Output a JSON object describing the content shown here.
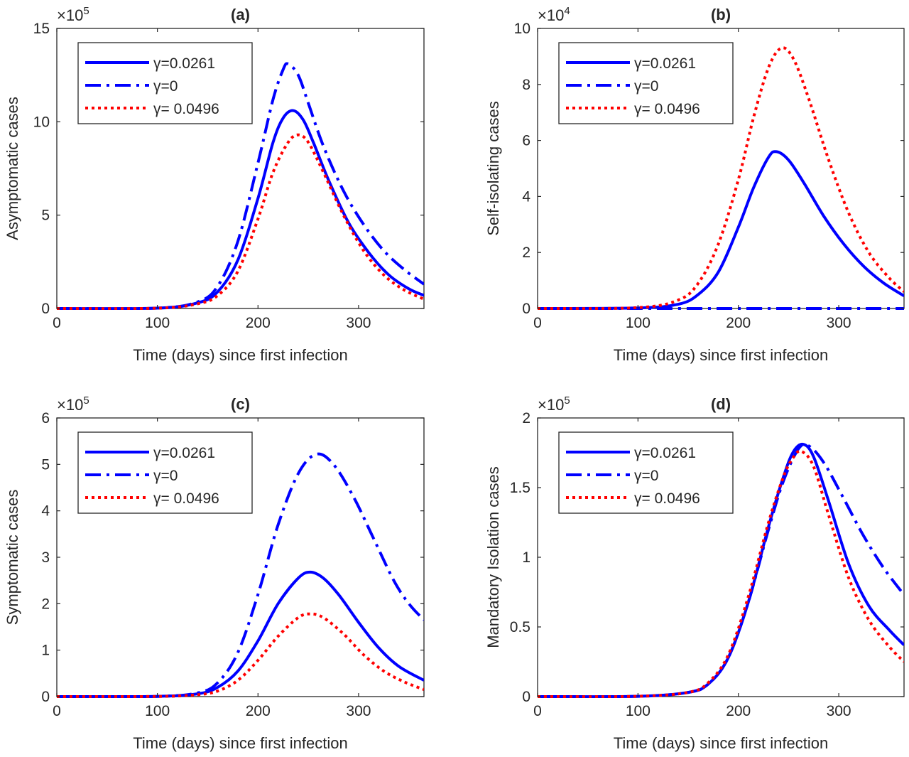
{
  "chart_data": [
    {
      "type": "line",
      "title": "(a)",
      "xlabel": "Time (days) since first infection",
      "ylabel": "Asymptomatic cases",
      "y_exponent_label": "×10",
      "y_exponent_power": "5",
      "xlim": [
        0,
        365
      ],
      "ylim": [
        0,
        15
      ],
      "xticks": [
        0,
        100,
        200,
        300
      ],
      "yticks": [
        0,
        5,
        10,
        15
      ],
      "grid": false,
      "legend_position": "top-left",
      "series": [
        {
          "name": "γ=0.0261",
          "color": "#0000ff",
          "style": "solid",
          "x": [
            0,
            100,
            140,
            160,
            180,
            200,
            215,
            225,
            235,
            245,
            255,
            270,
            290,
            310,
            330,
            350,
            365
          ],
          "y": [
            0,
            0.02,
            0.3,
            0.9,
            2.6,
            5.9,
            8.9,
            10.2,
            10.6,
            10.1,
            8.9,
            6.9,
            4.6,
            3.0,
            1.8,
            1.05,
            0.7
          ]
        },
        {
          "name": "γ=0",
          "color": "#0000ff",
          "style": "dashdot",
          "x": [
            0,
            100,
            140,
            160,
            180,
            200,
            215,
            225,
            230,
            240,
            250,
            265,
            285,
            305,
            325,
            345,
            365
          ],
          "y": [
            0,
            0.02,
            0.35,
            1.2,
            3.6,
            7.8,
            11.2,
            12.8,
            13.1,
            12.5,
            11.0,
            8.7,
            6.3,
            4.5,
            3.1,
            2.1,
            1.3
          ]
        },
        {
          "name": "γ= 0.0496",
          "color": "#ff0000",
          "style": "dotted",
          "x": [
            0,
            100,
            140,
            160,
            180,
            200,
            215,
            230,
            240,
            250,
            265,
            285,
            305,
            325,
            345,
            365
          ],
          "y": [
            0,
            0.015,
            0.25,
            0.7,
            2.0,
            4.8,
            7.3,
            8.9,
            9.3,
            8.9,
            7.3,
            5.0,
            3.1,
            1.8,
            1.0,
            0.5
          ]
        }
      ]
    },
    {
      "type": "line",
      "title": "(b)",
      "xlabel": "Time (days) since first infection",
      "ylabel": "Self-isolating cases",
      "y_exponent_label": "×10",
      "y_exponent_power": "4",
      "xlim": [
        0,
        365
      ],
      "ylim": [
        0,
        10
      ],
      "xticks": [
        0,
        100,
        200,
        300
      ],
      "yticks": [
        0,
        2,
        4,
        6,
        8,
        10
      ],
      "grid": false,
      "legend_position": "top-left",
      "series": [
        {
          "name": "γ=0.0261",
          "color": "#0000ff",
          "style": "solid",
          "x": [
            0,
            100,
            140,
            160,
            180,
            200,
            215,
            230,
            238,
            250,
            265,
            285,
            305,
            325,
            345,
            365
          ],
          "y": [
            0,
            0.02,
            0.15,
            0.5,
            1.3,
            2.9,
            4.3,
            5.4,
            5.6,
            5.3,
            4.5,
            3.3,
            2.3,
            1.5,
            0.9,
            0.45
          ]
        },
        {
          "name": "γ=0",
          "color": "#0000ff",
          "style": "dashdot",
          "x": [
            0,
            365
          ],
          "y": [
            0,
            0
          ]
        },
        {
          "name": "γ= 0.0496",
          "color": "#ff0000",
          "style": "dotted",
          "x": [
            0,
            100,
            140,
            160,
            180,
            200,
            215,
            230,
            243,
            255,
            270,
            290,
            310,
            330,
            350,
            365
          ],
          "y": [
            0,
            0.03,
            0.3,
            0.9,
            2.3,
            4.6,
            6.8,
            8.6,
            9.3,
            8.9,
            7.5,
            5.3,
            3.4,
            2.0,
            1.1,
            0.6
          ]
        }
      ]
    },
    {
      "type": "line",
      "title": "(c)",
      "xlabel": "Time (days) since first infection",
      "ylabel": "Symptomatic cases",
      "y_exponent_label": "×10",
      "y_exponent_power": "5",
      "xlim": [
        0,
        365
      ],
      "ylim": [
        0,
        6
      ],
      "xticks": [
        0,
        100,
        200,
        300
      ],
      "yticks": [
        0,
        1,
        2,
        3,
        4,
        5,
        6
      ],
      "grid": false,
      "legend_position": "top-left",
      "series": [
        {
          "name": "γ=0.0261",
          "color": "#0000ff",
          "style": "solid",
          "x": [
            0,
            100,
            140,
            160,
            180,
            200,
            220,
            240,
            252,
            265,
            280,
            300,
            320,
            340,
            365
          ],
          "y": [
            0,
            0.005,
            0.06,
            0.2,
            0.55,
            1.2,
            2.0,
            2.55,
            2.68,
            2.55,
            2.2,
            1.6,
            1.05,
            0.65,
            0.35
          ]
        },
        {
          "name": "γ=0",
          "color": "#0000ff",
          "style": "dashdot",
          "x": [
            0,
            100,
            140,
            160,
            180,
            200,
            220,
            240,
            258,
            275,
            295,
            315,
            335,
            350,
            365
          ],
          "y": [
            0,
            0.005,
            0.08,
            0.3,
            0.95,
            2.2,
            3.7,
            4.8,
            5.22,
            5.0,
            4.3,
            3.4,
            2.5,
            2.0,
            1.65
          ]
        },
        {
          "name": "γ= 0.0496",
          "color": "#ff0000",
          "style": "dotted",
          "x": [
            0,
            100,
            140,
            160,
            180,
            200,
            220,
            240,
            252,
            265,
            285,
            305,
            325,
            345,
            365
          ],
          "y": [
            0,
            0.003,
            0.04,
            0.12,
            0.35,
            0.78,
            1.3,
            1.7,
            1.78,
            1.7,
            1.35,
            0.9,
            0.55,
            0.32,
            0.15
          ]
        }
      ]
    },
    {
      "type": "line",
      "title": "(d)",
      "xlabel": "Time (days) since first infection",
      "ylabel": "Mandatory Isolation cases",
      "y_exponent_label": "×10",
      "y_exponent_power": "5",
      "xlim": [
        0,
        365
      ],
      "ylim": [
        0,
        2
      ],
      "xticks": [
        0,
        100,
        200,
        300
      ],
      "yticks": [
        0,
        0.5,
        1,
        1.5,
        2
      ],
      "ytick_labels": [
        "0",
        "0.5",
        "1",
        "1.5",
        "2"
      ],
      "grid": false,
      "legend_position": "top-left",
      "series": [
        {
          "name": "γ=0.0261",
          "color": "#0000ff",
          "style": "solid",
          "x": [
            0,
            100,
            150,
            170,
            190,
            210,
            230,
            245,
            255,
            265,
            275,
            290,
            310,
            330,
            350,
            365
          ],
          "y": [
            0,
            0.002,
            0.03,
            0.09,
            0.28,
            0.68,
            1.22,
            1.58,
            1.76,
            1.81,
            1.72,
            1.4,
            0.95,
            0.65,
            0.48,
            0.37
          ]
        },
        {
          "name": "γ=0",
          "color": "#0000ff",
          "style": "dashdot",
          "x": [
            0,
            100,
            150,
            170,
            190,
            210,
            230,
            245,
            260,
            270,
            285,
            305,
            325,
            345,
            365
          ],
          "y": [
            0,
            0.002,
            0.03,
            0.09,
            0.28,
            0.68,
            1.2,
            1.55,
            1.78,
            1.8,
            1.68,
            1.42,
            1.15,
            0.92,
            0.73
          ]
        },
        {
          "name": "γ= 0.0496",
          "color": "#ff0000",
          "style": "dotted",
          "x": [
            0,
            100,
            150,
            170,
            190,
            210,
            230,
            245,
            255,
            263,
            275,
            290,
            310,
            330,
            350,
            365
          ],
          "y": [
            0,
            0.002,
            0.03,
            0.1,
            0.3,
            0.72,
            1.25,
            1.58,
            1.72,
            1.76,
            1.65,
            1.3,
            0.85,
            0.55,
            0.36,
            0.25
          ]
        }
      ]
    }
  ]
}
